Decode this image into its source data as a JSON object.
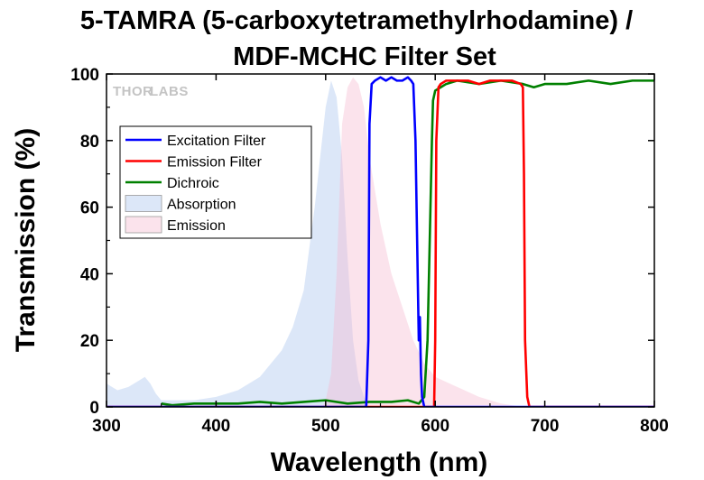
{
  "chart_data": {
    "type": "area",
    "title_lines": [
      "5-TAMRA (5-carboxytetramethylrhodamine) /",
      "MDF-MCHC Filter Set"
    ],
    "xlabel": "Wavelength (nm)",
    "ylabel": "Transmission (%)",
    "xlim": [
      300,
      800
    ],
    "ylim": [
      0,
      100
    ],
    "xticks": [
      300,
      400,
      500,
      600,
      700,
      800
    ],
    "yticks": [
      0,
      20,
      40,
      60,
      80,
      100
    ],
    "watermark": {
      "left": "THOR",
      "right": "LABS"
    },
    "legend_position": "upper-left",
    "series": [
      {
        "name": "Excitation Filter",
        "style": "line",
        "color": "#0000ff",
        "x": [
          300,
          537,
          539,
          540,
          542,
          545,
          550,
          555,
          560,
          565,
          570,
          575,
          578,
          580,
          582,
          584,
          585,
          586,
          587,
          588,
          590,
          800
        ],
        "y": [
          0,
          0,
          20,
          85,
          97,
          98,
          99,
          98,
          99,
          98,
          98,
          99,
          98,
          97,
          80,
          40,
          20,
          27,
          10,
          3,
          0,
          0
        ]
      },
      {
        "name": "Emission Filter",
        "style": "line",
        "color": "#ff0000",
        "x": [
          300,
          599,
          600,
          601,
          603,
          605,
          610,
          620,
          630,
          640,
          650,
          660,
          670,
          678,
          680,
          681,
          682,
          684,
          686,
          800
        ],
        "y": [
          0,
          0,
          20,
          80,
          96,
          97,
          98,
          98,
          98,
          97,
          98,
          98,
          98,
          97,
          96,
          70,
          20,
          3,
          0,
          0
        ]
      },
      {
        "name": "Dichroic",
        "style": "line",
        "color": "#008000",
        "x": [
          350,
          360,
          380,
          400,
          420,
          440,
          460,
          480,
          500,
          520,
          540,
          560,
          575,
          585,
          590,
          593,
          595,
          597,
          598,
          600,
          605,
          610,
          620,
          640,
          660,
          680,
          690,
          700,
          720,
          740,
          760,
          780,
          800
        ],
        "y": [
          1,
          0.5,
          1,
          1,
          1,
          1.5,
          1,
          1.5,
          2,
          1,
          1.5,
          1.5,
          2,
          1,
          3,
          20,
          50,
          80,
          92,
          95,
          96,
          97,
          98,
          97,
          98,
          97,
          96,
          97,
          97,
          98,
          97,
          98,
          98
        ]
      },
      {
        "name": "Absorption",
        "style": "area",
        "color": "#a8c3ee",
        "x": [
          300,
          310,
          320,
          330,
          335,
          340,
          345,
          350,
          360,
          380,
          400,
          420,
          440,
          460,
          470,
          480,
          490,
          495,
          500,
          505,
          510,
          515,
          520,
          525,
          530,
          535,
          540
        ],
        "y": [
          7,
          5,
          6,
          8,
          9,
          7,
          4,
          2,
          2,
          2,
          3,
          5,
          9,
          17,
          24,
          35,
          60,
          75,
          90,
          98,
          93,
          75,
          45,
          20,
          8,
          3,
          0
        ]
      },
      {
        "name": "Emission",
        "style": "area",
        "color": "#f5b8cf",
        "x": [
          497,
          500,
          505,
          510,
          515,
          520,
          525,
          530,
          535,
          540,
          550,
          560,
          570,
          580,
          590,
          600,
          620,
          640,
          660,
          680
        ],
        "y": [
          0,
          2,
          10,
          40,
          85,
          96,
          99,
          97,
          90,
          75,
          55,
          40,
          30,
          20,
          13,
          9,
          6,
          3,
          1,
          0
        ]
      }
    ]
  }
}
